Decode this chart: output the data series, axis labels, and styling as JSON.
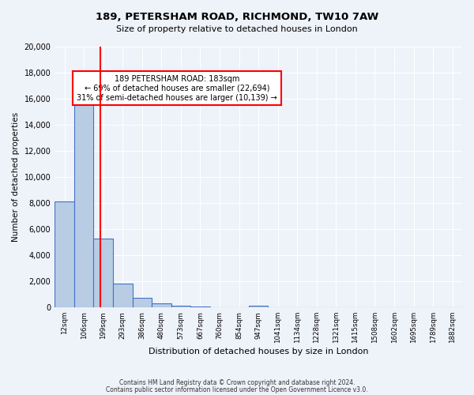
{
  "title": "189, PETERSHAM ROAD, RICHMOND, TW10 7AW",
  "subtitle": "Size of property relative to detached houses in London",
  "xlabel": "Distribution of detached houses by size in London",
  "ylabel": "Number of detached properties",
  "bar_labels": [
    "12sqm",
    "106sqm",
    "199sqm",
    "293sqm",
    "386sqm",
    "480sqm",
    "573sqm",
    "667sqm",
    "760sqm",
    "854sqm",
    "947sqm",
    "1041sqm",
    "1134sqm",
    "1228sqm",
    "1321sqm",
    "1415sqm",
    "1508sqm",
    "1602sqm",
    "1695sqm",
    "1789sqm",
    "1882sqm"
  ],
  "bar_color": "#b8cce4",
  "bar_edge_color": "#4472c4",
  "vline_x": 1.85,
  "vline_color": "#ff0000",
  "ylim": [
    0,
    20000
  ],
  "yticks": [
    0,
    2000,
    4000,
    6000,
    8000,
    10000,
    12000,
    14000,
    16000,
    18000,
    20000
  ],
  "annotation_text": "189 PETERSHAM ROAD: 183sqm\n← 69% of detached houses are smaller (22,694)\n31% of semi-detached houses are larger (10,139) →",
  "annotation_box_color": "#ffffff",
  "annotation_box_edge": "#ff0000",
  "footer_line1": "Contains HM Land Registry data © Crown copyright and database right 2024.",
  "footer_line2": "Contains public sector information licensed under the Open Government Licence v3.0.",
  "bg_color": "#eef2f9",
  "plot_bg_color": "#eef2f9",
  "bar_heights": [
    8100,
    16500,
    5300,
    1800,
    750,
    300,
    150,
    100,
    0,
    0,
    150,
    0,
    0,
    0,
    0,
    0,
    0,
    0,
    0,
    0,
    0
  ]
}
